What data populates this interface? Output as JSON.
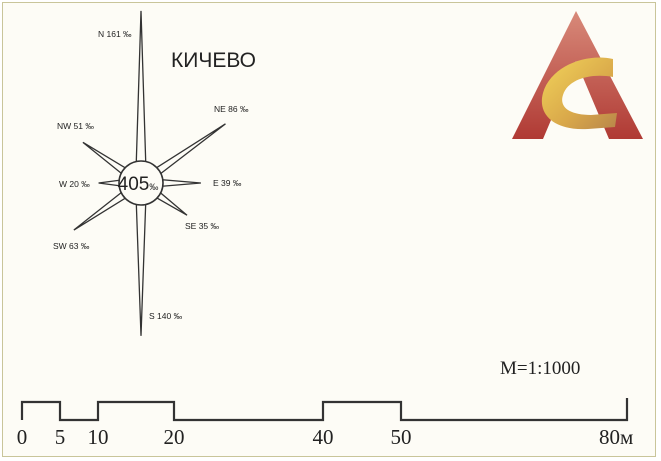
{
  "town_name": "КИЧЕВО",
  "wind_rose": {
    "total": "405",
    "total_unit": "‰",
    "directions": [
      {
        "key": "N",
        "label": "N 161 ‰",
        "value": 161
      },
      {
        "key": "NE",
        "label": "NE 86 ‰",
        "value": 86
      },
      {
        "key": "E",
        "label": "E 39 ‰",
        "value": 39
      },
      {
        "key": "SE",
        "label": "SE 35 ‰",
        "value": 35
      },
      {
        "key": "S",
        "label": "S 140 ‰",
        "value": 140
      },
      {
        "key": "SW",
        "label": "SW 63 ‰",
        "value": 63
      },
      {
        "key": "W",
        "label": "W 20 ‰",
        "value": 20
      },
      {
        "key": "NW",
        "label": "NW 51 ‰",
        "value": 51
      }
    ]
  },
  "scale": {
    "ratio": "M=1:1000",
    "ticks": [
      "0",
      "5",
      "10",
      "20",
      "40",
      "50",
      "80м"
    ],
    "tick_values": [
      0,
      5,
      10,
      20,
      40,
      50,
      80
    ]
  },
  "logo": {
    "colors": {
      "triangle": "#c0504d",
      "swoosh": "#e0b84a"
    }
  }
}
